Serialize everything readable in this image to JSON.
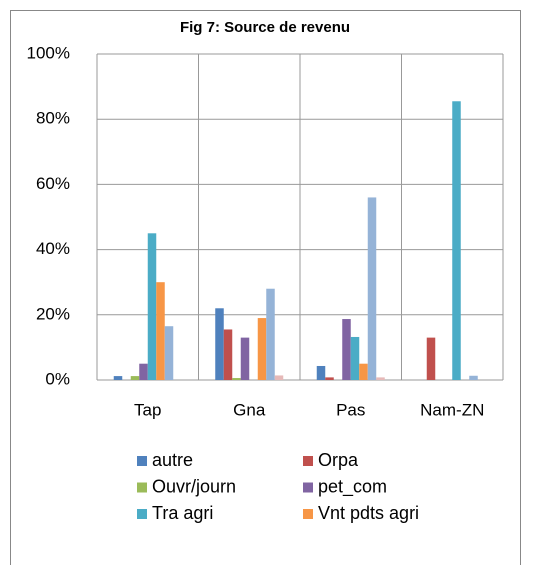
{
  "chart_data": {
    "type": "bar",
    "title": "Fig 7: Source de revenu",
    "categories": [
      "Tap",
      "Gna",
      "Pas",
      "Nam-ZN"
    ],
    "series": [
      {
        "name": "autre",
        "color": "#4f81bd",
        "values": [
          1.2,
          22,
          4.3,
          0
        ]
      },
      {
        "name": "Orpa",
        "color": "#c0504d",
        "values": [
          0,
          15.5,
          0.8,
          13
        ]
      },
      {
        "name": "Ouvr/journ",
        "color": "#9bbb59",
        "values": [
          1.2,
          0.6,
          0,
          0
        ]
      },
      {
        "name": "pet_com",
        "color": "#8064a2",
        "values": [
          5,
          13,
          18.7,
          0
        ]
      },
      {
        "name": "Tra agri",
        "color": "#4bacc6",
        "values": [
          45,
          0,
          13.2,
          85.5
        ]
      },
      {
        "name": "Vnt pdts agri",
        "color": "#f79646",
        "values": [
          30,
          19,
          5,
          0
        ]
      },
      {
        "color": "#95b3d7",
        "values": [
          16.5,
          28,
          56,
          1.3
        ]
      },
      {
        "color": "#e6b9b8",
        "values": [
          0,
          1.4,
          0.8,
          0
        ]
      }
    ],
    "ylim": [
      0,
      100
    ],
    "yticks": [
      {
        "value": 0,
        "label": "0%"
      },
      {
        "value": 20,
        "label": "20%"
      },
      {
        "value": 40,
        "label": "40%"
      },
      {
        "value": 60,
        "label": "60%"
      },
      {
        "value": 80,
        "label": "80%"
      },
      {
        "value": 100,
        "label": "100%"
      }
    ],
    "grid": true,
    "legend": "bottom"
  }
}
